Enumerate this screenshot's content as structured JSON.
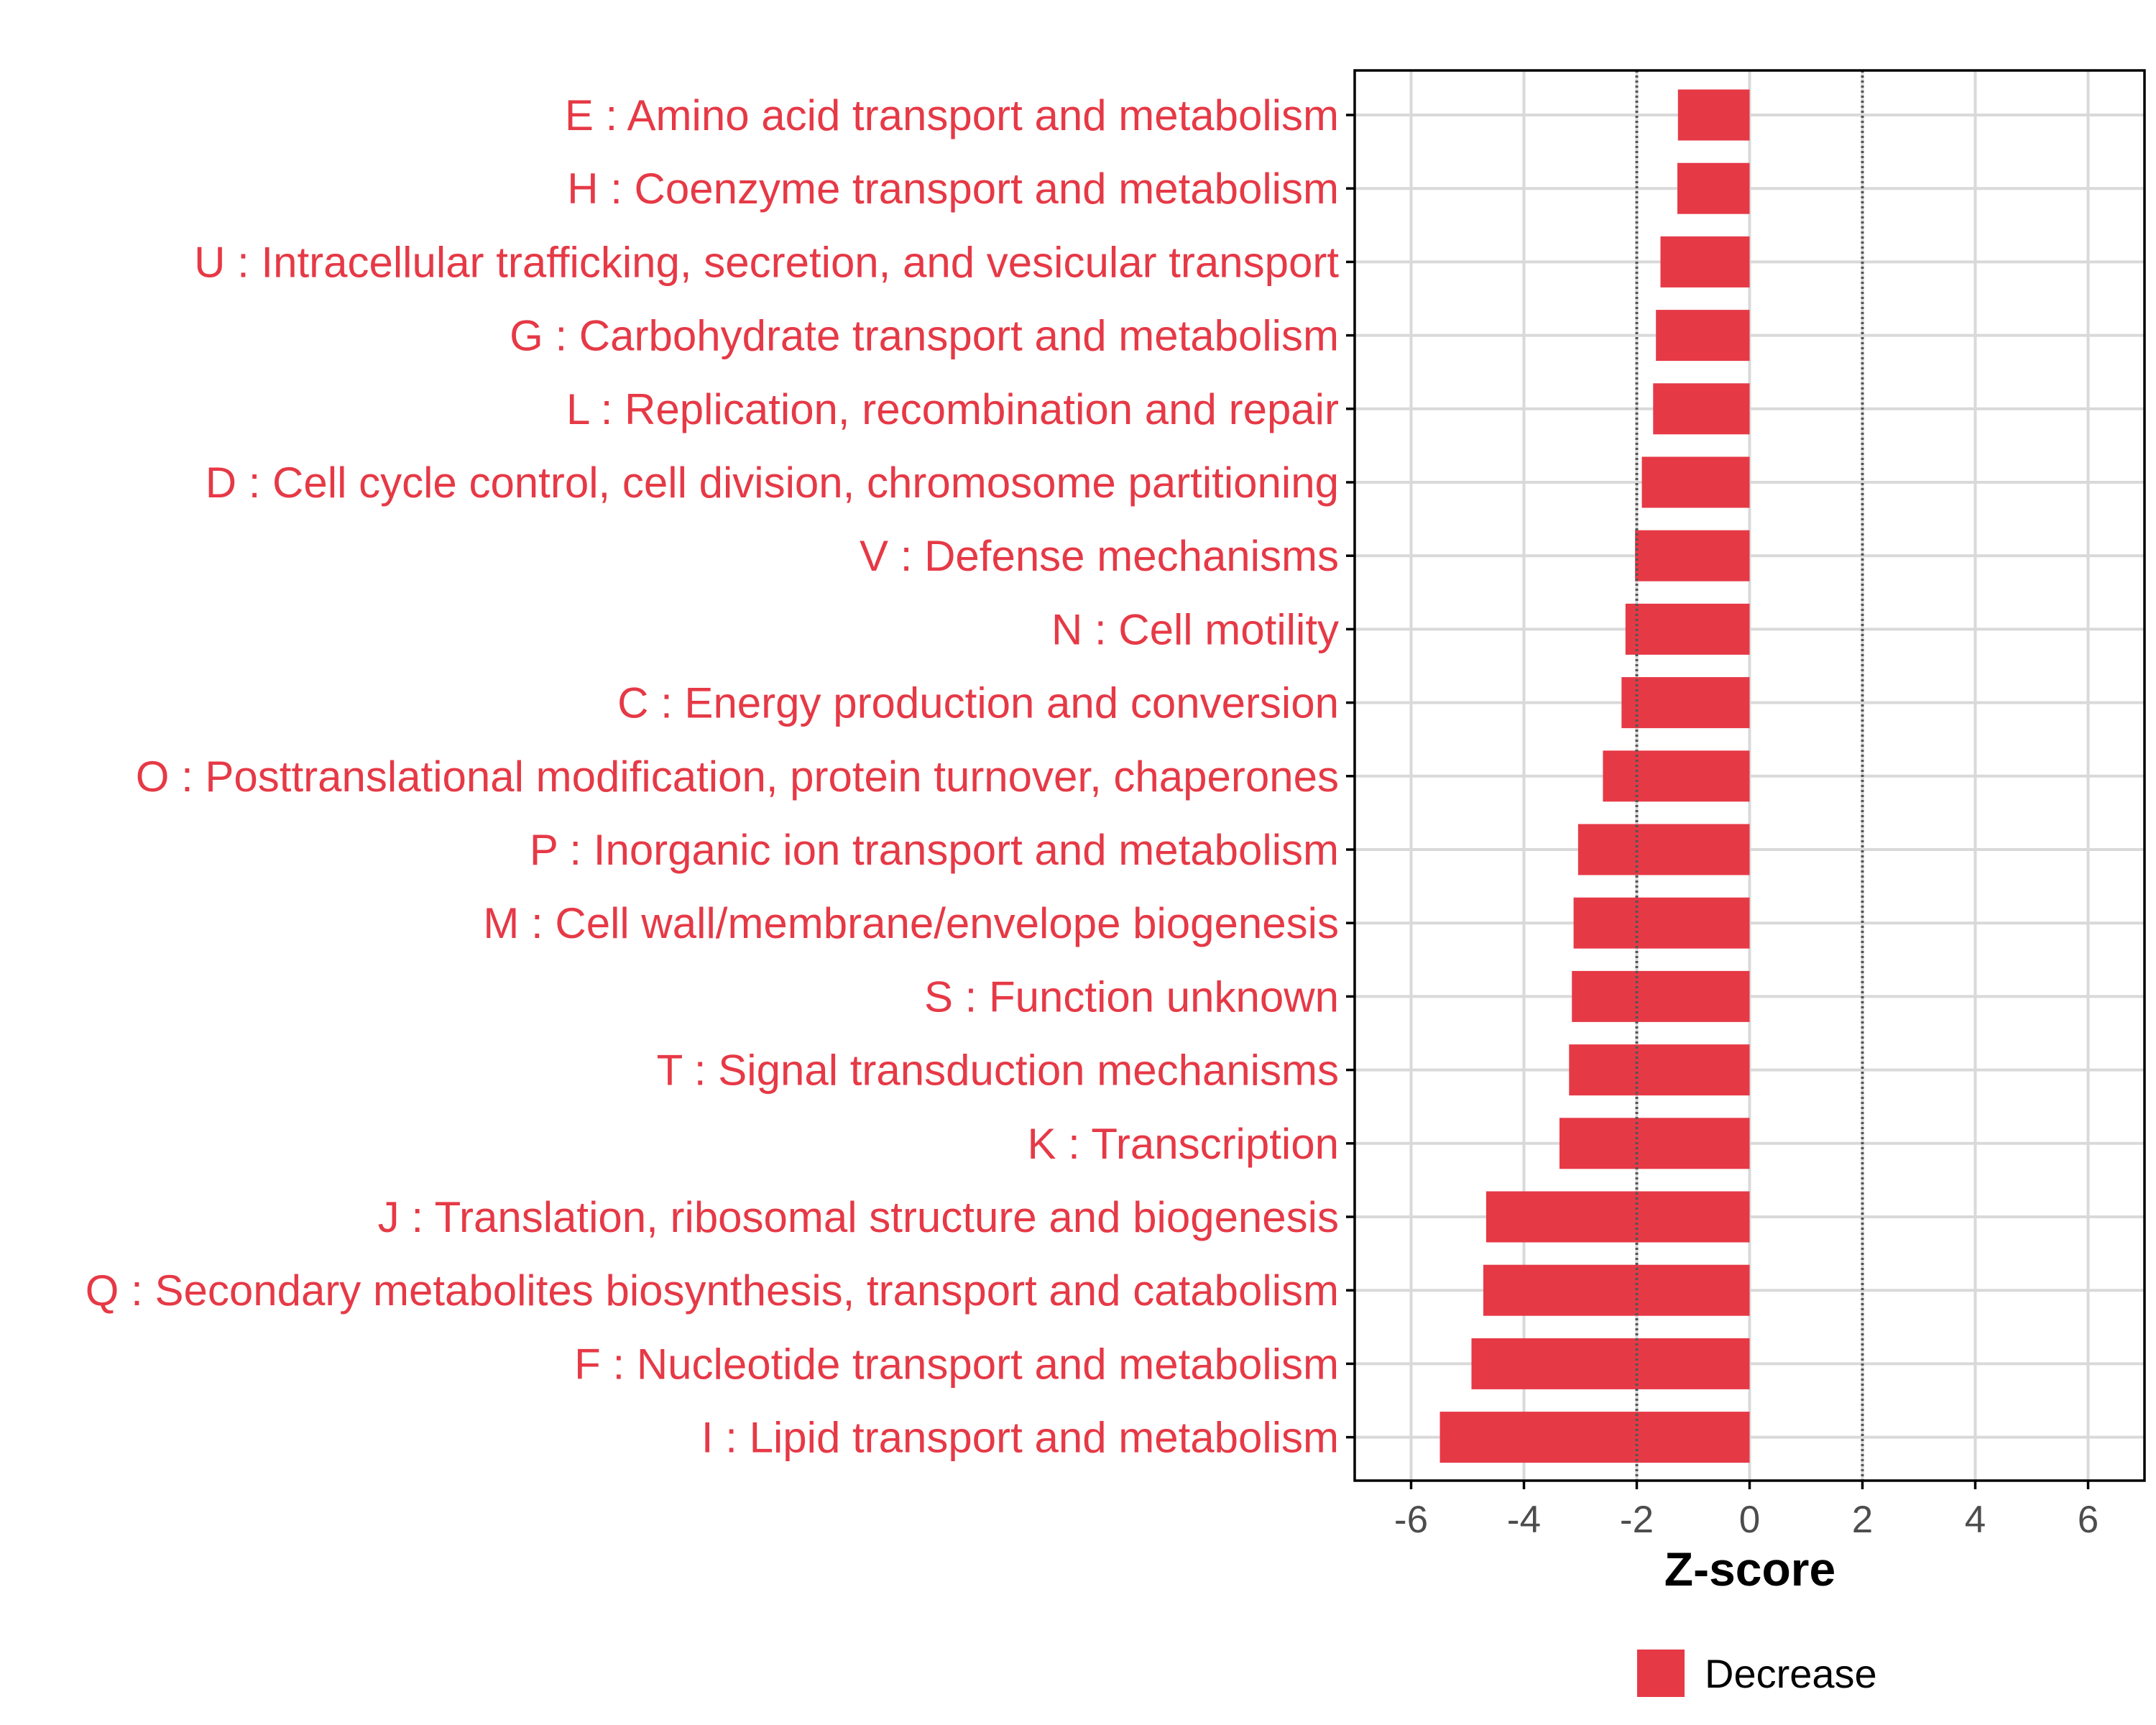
{
  "chart_data": {
    "type": "bar",
    "orientation": "horizontal",
    "title": "",
    "xlabel": "Z-score",
    "ylabel": "",
    "xlim": [
      -7,
      7
    ],
    "x_ticks": [
      -6,
      -4,
      -2,
      0,
      2,
      4,
      6
    ],
    "x_tick_labels": [
      "-6",
      "-4",
      "-2",
      "0",
      "2",
      "4",
      "6"
    ],
    "reference_lines": [
      -2,
      2
    ],
    "grid": true,
    "categories": [
      "E : Amino acid transport and metabolism",
      "H : Coenzyme transport and metabolism",
      "U : Intracellular trafficking, secretion, and vesicular transport",
      "G : Carbohydrate transport and metabolism",
      "L : Replication, recombination and repair",
      "D : Cell cycle control, cell division, chromosome partitioning",
      "V : Defense mechanisms",
      "N : Cell motility",
      "C : Energy production and conversion",
      "O : Posttranslational modification, protein turnover, chaperones",
      "P : Inorganic ion transport and metabolism",
      "M : Cell wall/membrane/envelope biogenesis",
      "S : Function unknown",
      "T : Signal transduction mechanisms",
      "K : Transcription",
      "J : Translation, ribosomal structure and biogenesis",
      "Q : Secondary metabolites biosynthesis, transport and catabolism",
      "F : Nucleotide transport and metabolism",
      "I : Lipid transport and metabolism"
    ],
    "values": [
      -1.27,
      -1.28,
      -1.58,
      -1.66,
      -1.71,
      -1.91,
      -2.03,
      -2.2,
      -2.27,
      -2.6,
      -3.04,
      -3.12,
      -3.15,
      -3.2,
      -3.37,
      -4.67,
      -4.72,
      -4.93,
      -5.49
    ],
    "series": [
      {
        "name": "Decrease",
        "color": "#e63946"
      }
    ],
    "legend_position": "bottom"
  },
  "colors": {
    "bar": "#e63946",
    "label": "#e63946",
    "grid": "#d9d9d9",
    "axis": "#000000",
    "reference_line": "#555555"
  }
}
